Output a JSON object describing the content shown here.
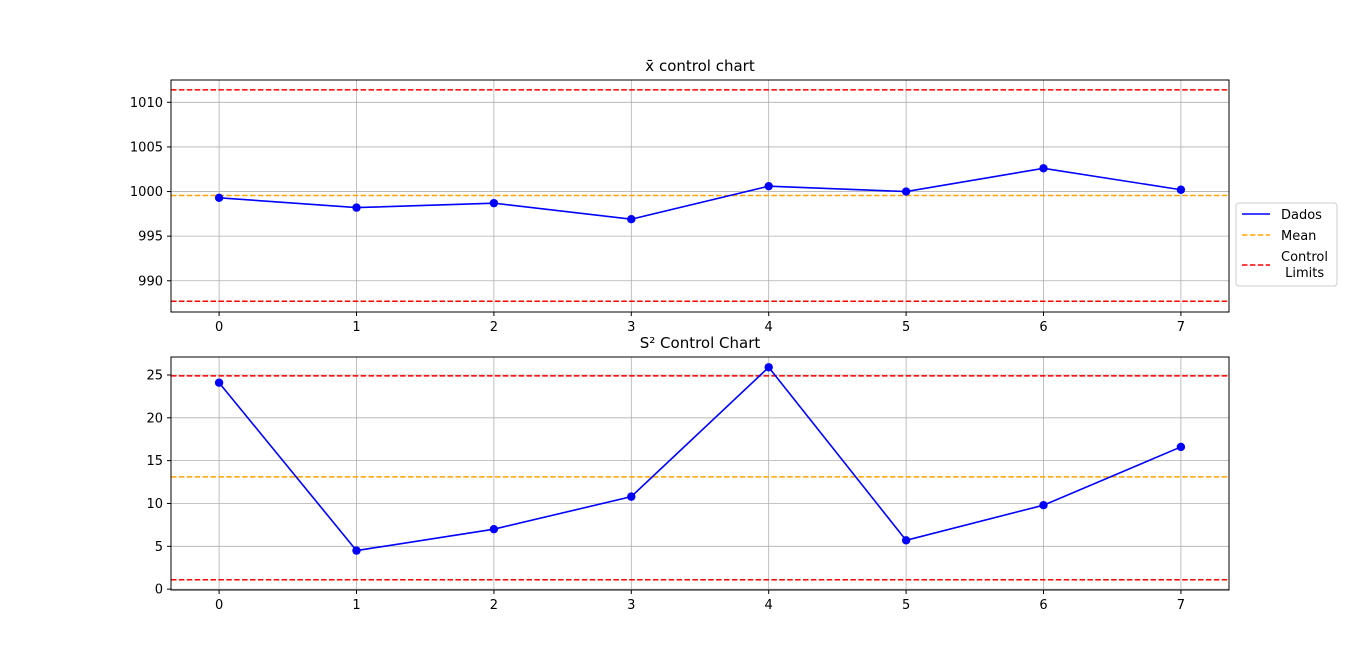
{
  "chart_data": [
    {
      "type": "line",
      "title": "x̄ control chart",
      "x": [
        0,
        1,
        2,
        3,
        4,
        5,
        6,
        7
      ],
      "xlim": [
        -0.35,
        7.35
      ],
      "ylim": [
        986.5,
        1012.5
      ],
      "xticks": [
        0,
        1,
        2,
        3,
        4,
        5,
        6,
        7
      ],
      "yticks": [
        990,
        995,
        1000,
        1005,
        1010
      ],
      "grid": true,
      "legend_position": "right",
      "series": [
        {
          "name": "Dados",
          "style": "solid",
          "color": "#0000ff",
          "markers": true,
          "values": [
            999.3,
            998.2,
            998.7,
            996.9,
            1000.6,
            1000.0,
            1002.6,
            1000.2
          ]
        }
      ],
      "reference_lines": [
        {
          "name": "Mean",
          "value": 999.55,
          "color": "#ffa500",
          "style": "dashed"
        },
        {
          "name": "Control\n Limits",
          "value": 1011.4,
          "color": "#ff0000",
          "style": "dashed"
        },
        {
          "name": "Control\n Limits",
          "value": 987.7,
          "color": "#ff0000",
          "style": "dashed"
        }
      ]
    },
    {
      "type": "line",
      "title": "S² Control Chart",
      "x": [
        0,
        1,
        2,
        3,
        4,
        5,
        6,
        7
      ],
      "xlim": [
        -0.35,
        7.35
      ],
      "ylim": [
        -0.1,
        27.1
      ],
      "xticks": [
        0,
        1,
        2,
        3,
        4,
        5,
        6,
        7
      ],
      "yticks": [
        0,
        5,
        10,
        15,
        20,
        25
      ],
      "grid": true,
      "series": [
        {
          "name": "Dados",
          "style": "solid",
          "color": "#0000ff",
          "markers": true,
          "values": [
            24.1,
            4.5,
            7.0,
            10.8,
            25.9,
            5.7,
            9.8,
            16.6
          ]
        }
      ],
      "reference_lines": [
        {
          "name": "Mean",
          "value": 13.1,
          "color": "#ffa500",
          "style": "dashed"
        },
        {
          "name": "Control\n Limits",
          "value": 24.9,
          "color": "#ff0000",
          "style": "dashed"
        },
        {
          "name": "Control\n Limits",
          "value": 1.1,
          "color": "#ff0000",
          "style": "dashed"
        }
      ]
    }
  ],
  "legend": {
    "items": [
      {
        "label": "Dados",
        "color": "#0000ff",
        "style": "solid"
      },
      {
        "label": "Mean",
        "color": "#ffa500",
        "style": "dashed"
      },
      {
        "label_lines": [
          "Control",
          " Limits"
        ],
        "color": "#ff0000",
        "style": "dashed"
      }
    ]
  }
}
